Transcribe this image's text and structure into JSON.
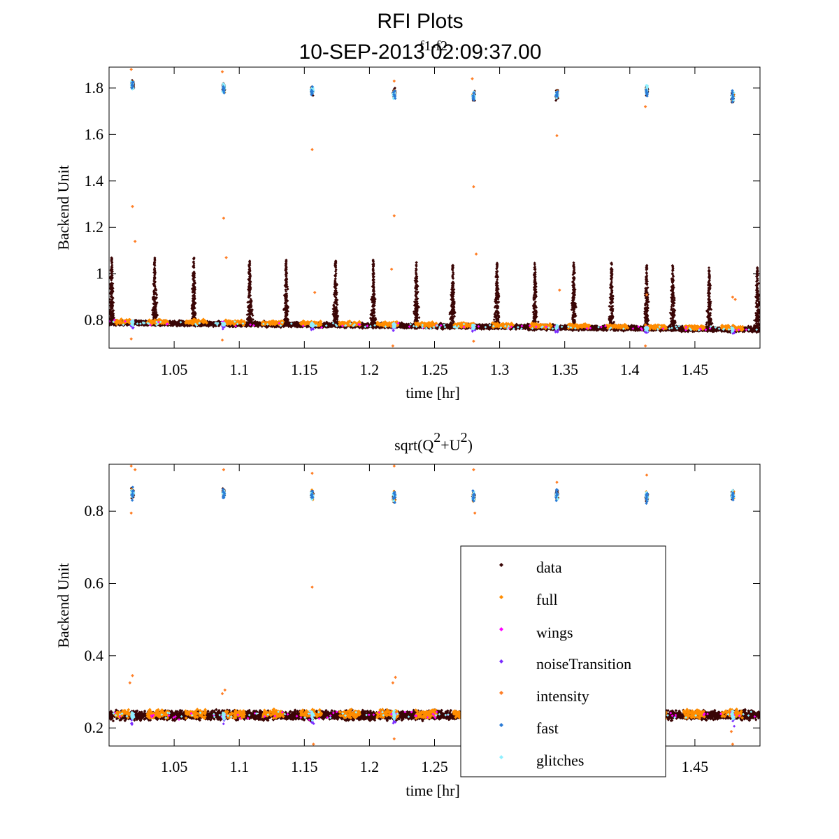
{
  "figure": {
    "title": "RFI Plots",
    "subtitle": "10-SEP-2013 02:09:37.00",
    "overlay_label": "f1-f2"
  },
  "colors": {
    "data": "#3a0505",
    "full": "#ff8c00",
    "wings": "#ff00ff",
    "noiseTransition": "#7b2cff",
    "intensity": "#ff7f27",
    "fast": "#2a7bd6",
    "glitches": "#8ff0ff"
  },
  "legend": {
    "items": [
      {
        "key": "data",
        "label": "data",
        "color": "#3a0505"
      },
      {
        "key": "full",
        "label": "full",
        "color": "#ff8c00"
      },
      {
        "key": "wings",
        "label": "wings",
        "color": "#ff00ff"
      },
      {
        "key": "noiseTransition",
        "label": "noiseTransition",
        "color": "#7b2cff"
      },
      {
        "key": "intensity",
        "label": "intensity",
        "color": "#ff7f27"
      },
      {
        "key": "fast",
        "label": "fast",
        "color": "#2a7bd6"
      },
      {
        "key": "glitches",
        "label": "glitches",
        "color": "#8ff0ff"
      }
    ]
  },
  "chart_data": [
    {
      "type": "scatter",
      "title": "",
      "xlabel": "time [hr]",
      "ylabel": "Backend Unit",
      "xlim": [
        1.0,
        1.5
      ],
      "ylim": [
        0.68,
        1.89
      ],
      "xticks": [
        1.05,
        1.1,
        1.15,
        1.2,
        1.25,
        1.3,
        1.35,
        1.4,
        1.45
      ],
      "xtick_labels": [
        "1.05",
        "1.1",
        "1.15",
        "1.2",
        "1.25",
        "1.3",
        "1.35",
        "1.4",
        "1.45"
      ],
      "yticks": [
        0.8,
        1.0,
        1.2,
        1.4,
        1.6,
        1.8
      ],
      "ytick_labels": [
        "0.8",
        "1",
        "1.2",
        "1.4",
        "1.6",
        "1.8"
      ],
      "baseline": {
        "start": 0.79,
        "end": 0.76
      },
      "spikes": {
        "times": [
          1.002,
          1.035,
          1.065,
          1.108,
          1.136,
          1.174,
          1.203,
          1.236,
          1.264,
          1.298,
          1.327,
          1.357,
          1.386,
          1.413,
          1.433,
          1.461,
          1.498
        ],
        "peaks": [
          1.07,
          1.07,
          1.07,
          1.06,
          1.06,
          1.06,
          1.06,
          1.05,
          1.04,
          1.05,
          1.05,
          1.05,
          1.05,
          1.04,
          1.04,
          1.03,
          1.03
        ]
      },
      "bursts": {
        "times": [
          1.018,
          1.088,
          1.156,
          1.219,
          1.28,
          1.344,
          1.413,
          1.479
        ],
        "levels": [
          1.81,
          1.8,
          1.79,
          1.775,
          1.765,
          1.77,
          1.79,
          1.76
        ]
      },
      "outliers": [
        {
          "x": 1.018,
          "y": 1.29
        },
        {
          "x": 1.02,
          "y": 1.14
        },
        {
          "x": 1.088,
          "y": 1.24
        },
        {
          "x": 1.09,
          "y": 1.07
        },
        {
          "x": 1.156,
          "y": 1.535
        },
        {
          "x": 1.158,
          "y": 0.92
        },
        {
          "x": 1.219,
          "y": 1.25
        },
        {
          "x": 1.217,
          "y": 1.02
        },
        {
          "x": 1.28,
          "y": 1.375
        },
        {
          "x": 1.282,
          "y": 1.085
        },
        {
          "x": 1.344,
          "y": 1.595
        },
        {
          "x": 1.346,
          "y": 0.93
        },
        {
          "x": 1.413,
          "y": 0.91
        },
        {
          "x": 1.479,
          "y": 0.9
        },
        {
          "x": 1.481,
          "y": 0.89
        },
        {
          "x": 1.017,
          "y": 1.88
        },
        {
          "x": 1.087,
          "y": 1.87
        },
        {
          "x": 1.219,
          "y": 1.83
        },
        {
          "x": 1.279,
          "y": 1.84
        },
        {
          "x": 1.412,
          "y": 1.72
        },
        {
          "x": 1.017,
          "y": 0.72
        },
        {
          "x": 1.087,
          "y": 0.715
        },
        {
          "x": 1.218,
          "y": 0.69
        },
        {
          "x": 1.28,
          "y": 0.71
        },
        {
          "x": 1.412,
          "y": 0.69
        }
      ]
    },
    {
      "type": "scatter",
      "title": "sqrt(Q²+U²)",
      "xlabel": "time [hr]",
      "ylabel": "Backend Unit",
      "xlim": [
        1.0,
        1.5
      ],
      "ylim": [
        0.15,
        0.93
      ],
      "xticks": [
        1.05,
        1.1,
        1.15,
        1.2,
        1.25,
        1.45
      ],
      "xtick_labels": [
        "1.05",
        "1.1",
        "1.15",
        "1.2",
        "1.25",
        "1.45"
      ],
      "yticks": [
        0.2,
        0.4,
        0.6,
        0.8
      ],
      "ytick_labels": [
        "0.2",
        "0.4",
        "0.6",
        "0.8"
      ],
      "baseline": {
        "start": 0.235,
        "end": 0.235
      },
      "bursts": {
        "times": [
          1.018,
          1.088,
          1.156,
          1.219,
          1.28,
          1.344,
          1.413,
          1.479
        ],
        "levels": [
          0.85,
          0.85,
          0.845,
          0.84,
          0.84,
          0.845,
          0.84,
          0.845
        ]
      },
      "outliers": [
        {
          "x": 1.017,
          "y": 0.925
        },
        {
          "x": 1.02,
          "y": 0.915
        },
        {
          "x": 1.018,
          "y": 0.345
        },
        {
          "x": 1.016,
          "y": 0.325
        },
        {
          "x": 1.088,
          "y": 0.915
        },
        {
          "x": 1.089,
          "y": 0.305
        },
        {
          "x": 1.087,
          "y": 0.295
        },
        {
          "x": 1.156,
          "y": 0.905
        },
        {
          "x": 1.156,
          "y": 0.59
        },
        {
          "x": 1.157,
          "y": 0.155
        },
        {
          "x": 1.219,
          "y": 0.925
        },
        {
          "x": 1.22,
          "y": 0.34
        },
        {
          "x": 1.218,
          "y": 0.325
        },
        {
          "x": 1.219,
          "y": 0.17
        },
        {
          "x": 1.28,
          "y": 0.915
        },
        {
          "x": 1.281,
          "y": 0.795
        },
        {
          "x": 1.344,
          "y": 0.88
        },
        {
          "x": 1.413,
          "y": 0.9
        },
        {
          "x": 1.479,
          "y": 0.155
        },
        {
          "x": 1.478,
          "y": 0.19
        },
        {
          "x": 1.017,
          "y": 0.795
        }
      ]
    }
  ]
}
